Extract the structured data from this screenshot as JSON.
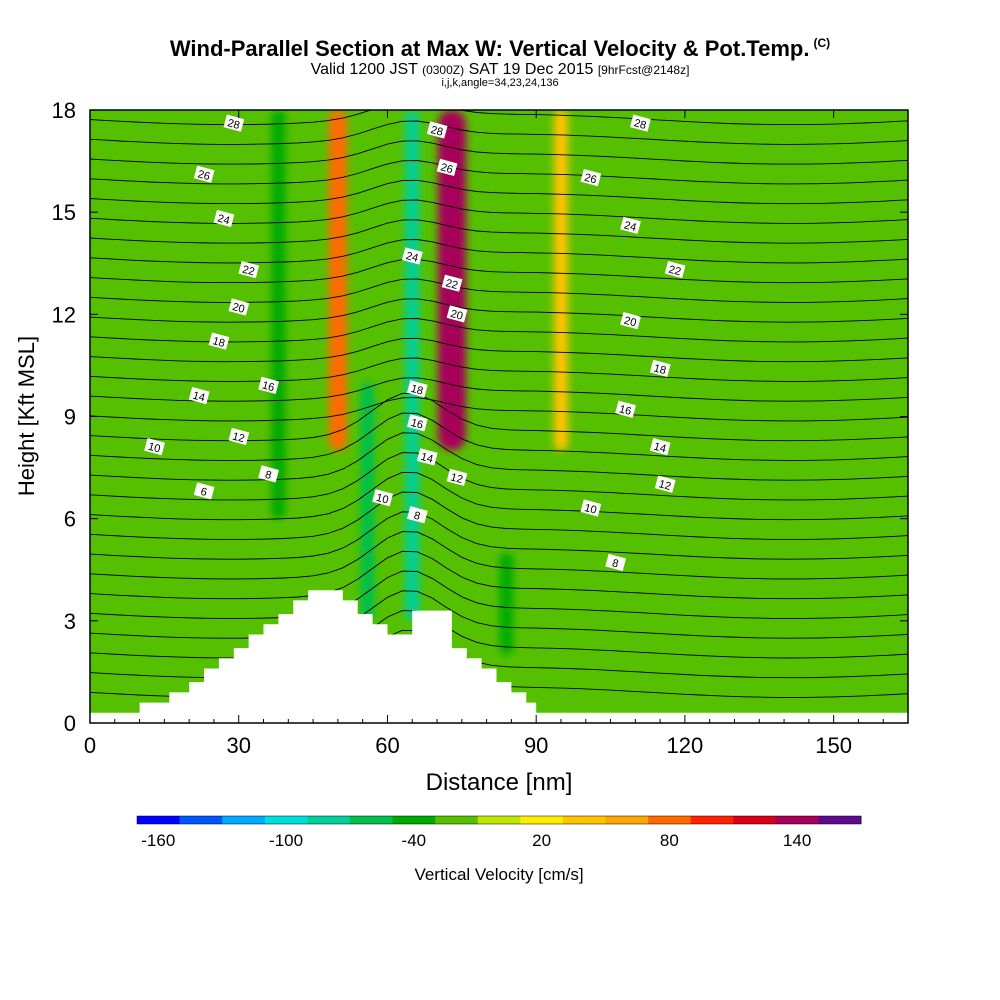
{
  "titles": {
    "main": "Wind-Parallel Section at Max W: Vertical Velocity & Pot.Temp.",
    "main_suffix": "(C)",
    "valid_prefix": "Valid 1200 JST",
    "valid_utc": "(0300Z)",
    "valid_date": "SAT 19 Dec 2015",
    "forecast": "[9hrFcst@2148z]",
    "params": "i,j,k,angle=34,23,24,136"
  },
  "colors": {
    "frame": "#000000",
    "terrain": "#ffffff",
    "contour": "#000000"
  },
  "chart_data": {
    "type": "heatmap",
    "title": "Wind-Parallel Section at Max W: Vertical Velocity & Pot.Temp.",
    "xlabel": "Distance [nm]",
    "ylabel": "Height [Kft MSL]",
    "xlim": [
      0,
      165
    ],
    "ylim": [
      0,
      18
    ],
    "x_ticks": [
      0,
      30,
      60,
      90,
      120,
      150
    ],
    "y_ticks": [
      0,
      3,
      6,
      9,
      12,
      15,
      18
    ],
    "colorbar": {
      "label": "Vertical Velocity [cm/s]",
      "tick_labels": [
        -160,
        -100,
        -40,
        20,
        80,
        140
      ],
      "min": -160,
      "max": 160,
      "step": 20,
      "colors": [
        "#0000ff",
        "#0055ff",
        "#00aaff",
        "#00dddd",
        "#00d09a",
        "#00bf4c",
        "#00aa00",
        "#55c000",
        "#bfe600",
        "#ffee00",
        "#ffc400",
        "#ffa500",
        "#ff6a00",
        "#ff2200",
        "#d9001a",
        "#a8005a",
        "#5e0a8f"
      ]
    },
    "vertical_velocity_features": [
      {
        "x": 38,
        "y0": 6,
        "y1": 18,
        "value": -40
      },
      {
        "x": 56,
        "y0": 3,
        "y1": 10,
        "value": -60
      },
      {
        "x": 65,
        "y0": 3,
        "y1": 18,
        "value": -70
      },
      {
        "x": 50,
        "y0": 8,
        "y1": 18,
        "value": 90
      },
      {
        "x": 73,
        "y0": 8,
        "y1": 18,
        "value": 140
      },
      {
        "x": 84,
        "y0": 2,
        "y1": 5,
        "value": -30
      },
      {
        "x": 95,
        "y0": 8,
        "y1": 18,
        "value": 40
      }
    ],
    "terrain_profile": [
      [
        0,
        0.3
      ],
      [
        10,
        0.3
      ],
      [
        10,
        0.6
      ],
      [
        16,
        0.6
      ],
      [
        16,
        0.9
      ],
      [
        20,
        0.9
      ],
      [
        20,
        1.2
      ],
      [
        23,
        1.2
      ],
      [
        23,
        1.6
      ],
      [
        26,
        1.6
      ],
      [
        26,
        1.9
      ],
      [
        29,
        1.9
      ],
      [
        29,
        2.2
      ],
      [
        32,
        2.2
      ],
      [
        32,
        2.6
      ],
      [
        35,
        2.6
      ],
      [
        35,
        2.9
      ],
      [
        38,
        2.9
      ],
      [
        38,
        3.2
      ],
      [
        41,
        3.2
      ],
      [
        41,
        3.6
      ],
      [
        44,
        3.6
      ],
      [
        44,
        3.9
      ],
      [
        51,
        3.9
      ],
      [
        51,
        3.6
      ],
      [
        54,
        3.6
      ],
      [
        54,
        3.2
      ],
      [
        57,
        3.2
      ],
      [
        57,
        2.9
      ],
      [
        60,
        2.9
      ],
      [
        60,
        2.6
      ],
      [
        65,
        2.6
      ],
      [
        65,
        3.3
      ],
      [
        73,
        3.3
      ],
      [
        73,
        2.2
      ],
      [
        76,
        2.2
      ],
      [
        76,
        1.9
      ],
      [
        79,
        1.9
      ],
      [
        79,
        1.6
      ],
      [
        82,
        1.6
      ],
      [
        82,
        1.2
      ],
      [
        85,
        1.2
      ],
      [
        85,
        0.9
      ],
      [
        88,
        0.9
      ],
      [
        88,
        0.6
      ],
      [
        90,
        0.6
      ],
      [
        90,
        0.3
      ],
      [
        165,
        0.3
      ]
    ],
    "contour_labels": [
      {
        "text": "6",
        "x": 23,
        "y": 6.8
      },
      {
        "text": "8",
        "x": 36,
        "y": 7.3
      },
      {
        "text": "10",
        "x": 13,
        "y": 8.1
      },
      {
        "text": "12",
        "x": 30,
        "y": 8.4
      },
      {
        "text": "14",
        "x": 22,
        "y": 9.6
      },
      {
        "text": "16",
        "x": 36,
        "y": 9.9
      },
      {
        "text": "18",
        "x": 26,
        "y": 11.2
      },
      {
        "text": "20",
        "x": 30,
        "y": 12.2
      },
      {
        "text": "22",
        "x": 32,
        "y": 13.3
      },
      {
        "text": "24",
        "x": 27,
        "y": 14.8
      },
      {
        "text": "26",
        "x": 23,
        "y": 16.1
      },
      {
        "text": "28",
        "x": 29,
        "y": 17.6
      },
      {
        "text": "10",
        "x": 59,
        "y": 6.6
      },
      {
        "text": "8",
        "x": 66,
        "y": 6.1
      },
      {
        "text": "14",
        "x": 68,
        "y": 7.8
      },
      {
        "text": "16",
        "x": 66,
        "y": 8.8
      },
      {
        "text": "18",
        "x": 66,
        "y": 9.8
      },
      {
        "text": "24",
        "x": 65,
        "y": 13.7
      },
      {
        "text": "28",
        "x": 70,
        "y": 17.4
      },
      {
        "text": "26",
        "x": 72,
        "y": 16.3
      },
      {
        "text": "22",
        "x": 73,
        "y": 12.9
      },
      {
        "text": "20",
        "x": 74,
        "y": 12.0
      },
      {
        "text": "12",
        "x": 74,
        "y": 7.2
      },
      {
        "text": "28",
        "x": 111,
        "y": 17.6
      },
      {
        "text": "26",
        "x": 101,
        "y": 16.0
      },
      {
        "text": "24",
        "x": 109,
        "y": 14.6
      },
      {
        "text": "22",
        "x": 118,
        "y": 13.3
      },
      {
        "text": "20",
        "x": 109,
        "y": 11.8
      },
      {
        "text": "18",
        "x": 115,
        "y": 10.4
      },
      {
        "text": "16",
        "x": 108,
        "y": 9.2
      },
      {
        "text": "14",
        "x": 115,
        "y": 8.1
      },
      {
        "text": "12",
        "x": 116,
        "y": 7.0
      },
      {
        "text": "10",
        "x": 101,
        "y": 6.3
      },
      {
        "text": "8",
        "x": 106,
        "y": 4.7
      }
    ]
  }
}
